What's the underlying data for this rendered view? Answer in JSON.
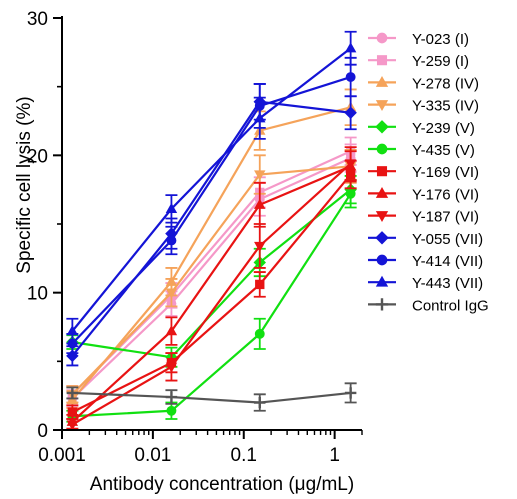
{
  "chart_data": {
    "type": "line",
    "xlabel": "Antibody concentration (μg/mL)",
    "ylabel": "Specific cell lysis (%)",
    "x_scale": "log",
    "xlim": [
      0.001,
      2
    ],
    "ylim": [
      0,
      30
    ],
    "x_ticks": [
      {
        "value": 0.001,
        "label": "0.001"
      },
      {
        "value": 0.01,
        "label": "0.01"
      },
      {
        "value": 0.1,
        "label": "0.1"
      },
      {
        "value": 1,
        "label": "1"
      }
    ],
    "y_ticks": [
      {
        "value": 0,
        "label": "0"
      },
      {
        "value": 10,
        "label": "10"
      },
      {
        "value": 20,
        "label": "20"
      },
      {
        "value": 30,
        "label": "30"
      }
    ],
    "x": [
      0.0013,
      0.016,
      0.15,
      1.5
    ],
    "legend_position": "right",
    "series": [
      {
        "name": "Y-023 (I)",
        "color": "#f598c8",
        "marker": "circle",
        "values": [
          2.3,
          9.2,
          16.8,
          19.8
        ],
        "errors": [
          0.6,
          0.9,
          1.2,
          1.0
        ]
      },
      {
        "name": "Y-259 (I)",
        "color": "#f598c8",
        "marker": "square",
        "values": [
          2.6,
          9.8,
          17.3,
          20.3
        ],
        "errors": [
          0.6,
          0.9,
          1.1,
          1.0
        ]
      },
      {
        "name": "Y-278 (IV)",
        "color": "#f5a35a",
        "marker": "triangle-up",
        "values": [
          2.2,
          10.8,
          21.8,
          23.5
        ],
        "errors": [
          0.6,
          1.0,
          1.4,
          1.3
        ]
      },
      {
        "name": "Y-335 (IV)",
        "color": "#f5a35a",
        "marker": "triangle-down",
        "values": [
          2.6,
          10.0,
          18.6,
          19.2
        ],
        "errors": [
          0.6,
          1.0,
          1.4,
          1.2
        ]
      },
      {
        "name": "Y-239 (V)",
        "color": "#11e011",
        "marker": "diamond",
        "values": [
          6.4,
          5.3,
          12.2,
          17.5
        ],
        "errors": [
          0.5,
          0.7,
          1.0,
          1.0
        ]
      },
      {
        "name": "Y-435 (V)",
        "color": "#11e011",
        "marker": "circle",
        "values": [
          1.0,
          1.4,
          7.0,
          17.2
        ],
        "errors": [
          0.4,
          0.6,
          1.1,
          1.0
        ]
      },
      {
        "name": "Y-169 (VI)",
        "color": "#e81313",
        "marker": "square",
        "values": [
          1.3,
          4.9,
          10.6,
          18.6
        ],
        "errors": [
          0.5,
          0.7,
          0.9,
          1.0
        ]
      },
      {
        "name": "Y-176 (VI)",
        "color": "#e81313",
        "marker": "triangle-up",
        "values": [
          0.6,
          7.2,
          16.4,
          19.2
        ],
        "errors": [
          0.5,
          1.0,
          1.6,
          1.1
        ]
      },
      {
        "name": "Y-187 (VI)",
        "color": "#e81313",
        "marker": "triangle-down",
        "values": [
          0.4,
          4.6,
          13.4,
          19.4
        ],
        "errors": [
          0.4,
          1.0,
          1.6,
          1.2
        ]
      },
      {
        "name": "Y-055 (VII)",
        "color": "#1414d6",
        "marker": "diamond",
        "values": [
          5.4,
          14.3,
          23.9,
          23.1
        ],
        "errors": [
          0.7,
          1.1,
          1.3,
          1.2
        ]
      },
      {
        "name": "Y-414 (VII)",
        "color": "#1414d6",
        "marker": "circle",
        "values": [
          6.3,
          13.8,
          23.6,
          25.7
        ],
        "errors": [
          0.7,
          1.0,
          1.6,
          1.4
        ]
      },
      {
        "name": "Y-443 (VII)",
        "color": "#1414d6",
        "marker": "triangle-up",
        "values": [
          7.2,
          16.1,
          22.7,
          27.8
        ],
        "errors": [
          0.9,
          1.0,
          1.5,
          1.2
        ]
      },
      {
        "name": "Control IgG",
        "color": "#555555",
        "marker": "plus",
        "values": [
          2.7,
          2.4,
          2.0,
          2.7
        ],
        "errors": [
          0.4,
          0.5,
          0.6,
          0.7
        ]
      }
    ]
  }
}
